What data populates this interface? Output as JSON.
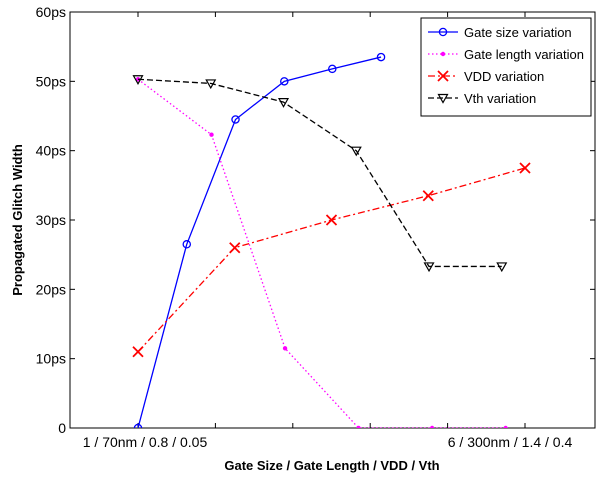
{
  "chart_data": {
    "type": "line",
    "title": "",
    "xlabel": "Gate Size / Gate Length / VDD / Vth",
    "ylabel": "Propagated Glitch Width",
    "ylim": [
      0,
      60
    ],
    "yticks": [
      "0",
      "10ps",
      "20ps",
      "30ps",
      "40ps",
      "50ps",
      "60ps"
    ],
    "x_range": [
      1,
      6
    ],
    "xtick_start": "1 / 70nm / 0.8 / 0.05",
    "xtick_end": "6 / 300nm / 1.4 / 0.4",
    "grid": false,
    "legend_position": "top-right",
    "series": [
      {
        "name": "Gate size variation",
        "color": "#0000ff",
        "dash": "solid",
        "marker": "circle",
        "x": [
          1,
          1.63,
          2.26,
          2.89,
          3.51,
          4.14
        ],
        "y": [
          0,
          26.5,
          44.5,
          50.0,
          51.8,
          53.5
        ]
      },
      {
        "name": "Gate length variation",
        "color": "#ff00ff",
        "dash": "dotted",
        "marker": "dot",
        "x": [
          1,
          1.95,
          2.9,
          3.85,
          4.8,
          5.75
        ],
        "y": [
          50.3,
          42.3,
          11.5,
          0,
          0,
          0
        ]
      },
      {
        "name": "VDD variation",
        "color": "#ff0000",
        "dash": "dashdot",
        "marker": "x",
        "x": [
          1,
          2.25,
          3.5,
          4.75,
          6
        ],
        "y": [
          11.0,
          26.0,
          30.0,
          33.5,
          37.5
        ]
      },
      {
        "name": "Vth variation",
        "color": "#000000",
        "dash": "dashed",
        "marker": "triangle-down",
        "x": [
          1,
          1.94,
          2.88,
          3.82,
          4.76,
          5.7
        ],
        "y": [
          50.3,
          49.7,
          47.0,
          40.0,
          23.3,
          23.3
        ]
      }
    ]
  }
}
